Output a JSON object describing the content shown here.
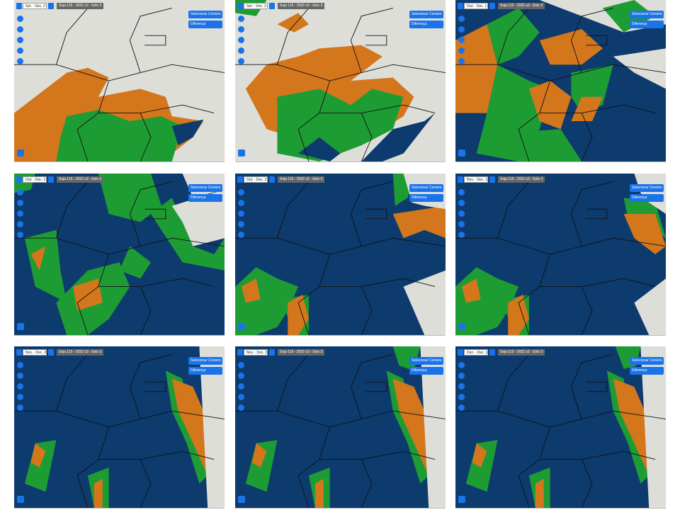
{
  "panels": [
    {
      "period": "Set. - Dec. 2",
      "layer": "Soja 115 - 2022 s3 - Solo 3",
      "buttons": [
        "Selecionar Cenário",
        "Diferença"
      ]
    },
    {
      "period": "Set. - Dec. 3",
      "layer": "Soja 115 - 2022 s3 - Solo 3",
      "buttons": [
        "Selecionar Cenário",
        "Diferença"
      ]
    },
    {
      "period": "Out. - Dec. 1",
      "layer": "Soja 115 - 2022 s3 - Solo 3",
      "buttons": [
        "Selecionar Cenário",
        "Diferença"
      ]
    },
    {
      "period": "Out. - Dec. 2",
      "layer": "Soja 115 - 2022 s3 - Solo 3",
      "buttons": [
        "Selecionar Cenário",
        "Diferença"
      ]
    },
    {
      "period": "Out. - Dec. 3",
      "layer": "Soja 115 - 2022 s3 - Solo 3",
      "buttons": [
        "Selecionar Cenário",
        "Diferença"
      ]
    },
    {
      "period": "Nov. - Dec. 1",
      "layer": "Soja 115 - 2022 s3 - Solo 3",
      "buttons": [
        "Selecionar Cenário",
        "Diferença"
      ]
    },
    {
      "period": "Nov. - Dec. 2",
      "layer": "Soja 115 - 2022 s3 - Solo 3",
      "buttons": [
        "Selecionar Cenário",
        "Diferença"
      ]
    },
    {
      "period": "Nov. - Dec. 3",
      "layer": "Soja 115 - 2022 s3 - Solo 3",
      "buttons": [
        "Selecionar Cenário",
        "Diferença"
      ]
    },
    {
      "period": "Dez. - Dec. 1",
      "layer": "Soja 115 - 2022 s3 - Solo 3",
      "buttons": [
        "Selecionar Cenário",
        "Diferença"
      ]
    }
  ]
}
